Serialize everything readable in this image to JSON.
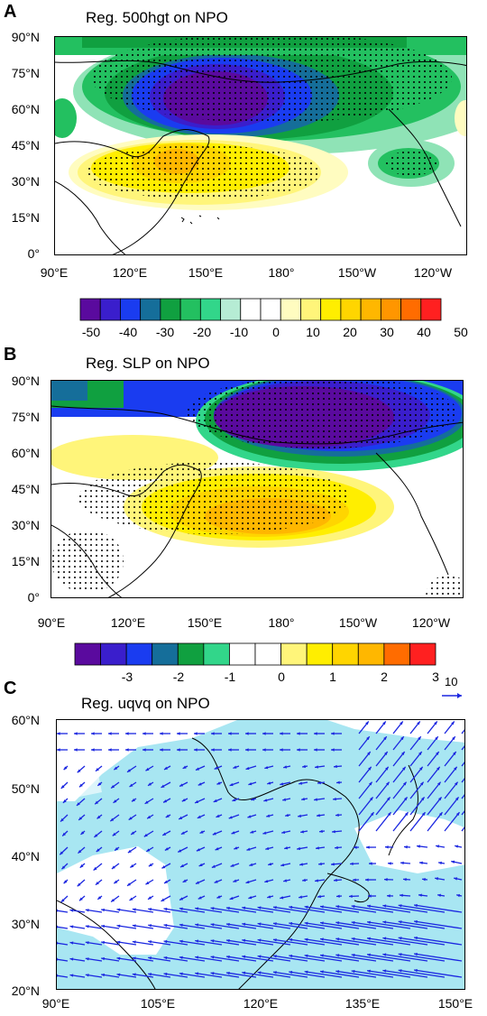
{
  "panels": [
    {
      "letter": "A",
      "title": "Reg. 500hgt on NPO",
      "y_ticks": [
        "90°N",
        "75°N",
        "60°N",
        "45°N",
        "30°N",
        "15°N",
        "0°"
      ],
      "x_ticks": [
        "90°E",
        "120°E",
        "150°E",
        "180°",
        "150°W",
        "120°W"
      ],
      "colorbar_labels": [
        "-50",
        "-40",
        "-30",
        "-20",
        "-10",
        "0",
        "10",
        "20",
        "30",
        "40",
        "50"
      ]
    },
    {
      "letter": "B",
      "title": "Reg. SLP on NPO",
      "y_ticks": [
        "90°N",
        "75°N",
        "60°N",
        "45°N",
        "30°N",
        "15°N",
        "0°"
      ],
      "x_ticks": [
        "90°E",
        "120°E",
        "150°E",
        "180°",
        "150°W",
        "120°W"
      ],
      "colorbar_labels": [
        "-3",
        "-2",
        "-1",
        "0",
        "1",
        "2",
        "3"
      ]
    },
    {
      "letter": "C",
      "title": "Reg. uqvq on NPO",
      "y_ticks": [
        "60°N",
        "50°N",
        "40°N",
        "30°N",
        "20°N"
      ],
      "x_ticks": [
        "90°E",
        "105°E",
        "120°E",
        "135°E",
        "150°E"
      ],
      "vector_key": "10"
    }
  ],
  "colors": {
    "scale_a": [
      "#5a0a9e",
      "#3a1ecc",
      "#1a3cf0",
      "#156e9a",
      "#10a040",
      "#23c060",
      "#32d68a",
      "#b6ecd4",
      "#ffffff",
      "#ffffff",
      "#fffcc0",
      "#fff57a",
      "#ffee00",
      "#ffd500",
      "#ffb700",
      "#ff9600",
      "#ff6c00",
      "#ff2020"
    ],
    "scale_b": [
      "#5a0a9e",
      "#3a1ecc",
      "#1a3cf0",
      "#156e9a",
      "#10a040",
      "#32d68a",
      "#ffffff",
      "#ffffff",
      "#fff57a",
      "#ffee00",
      "#ffd500",
      "#ffb700",
      "#ff6c00",
      "#ff2020"
    ],
    "shade_c": "#a8e6f2",
    "vector": "#1a26e0"
  }
}
